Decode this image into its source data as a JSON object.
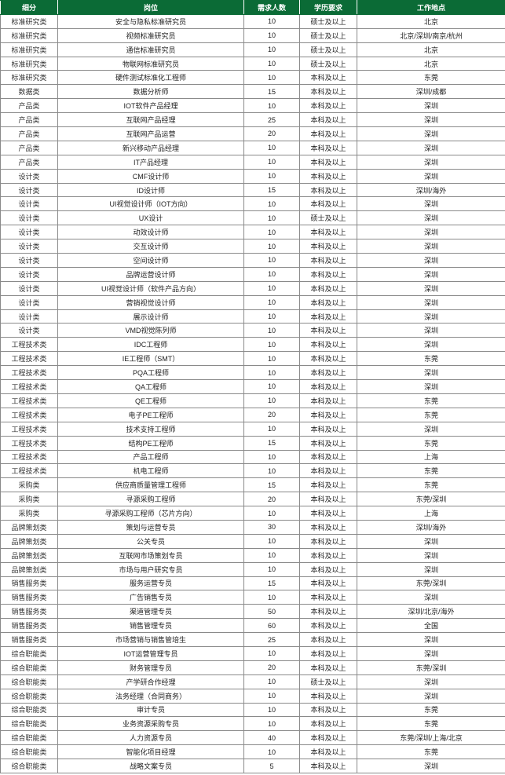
{
  "header_color": "#0b6b36",
  "headers": [
    "细分",
    "岗位",
    "需求人数",
    "学历要求",
    "工作地点"
  ],
  "rows": [
    [
      "标准研究类",
      "安全与隐私标准研究员",
      "10",
      "硕士及以上",
      "北京"
    ],
    [
      "标准研究类",
      "视频标准研究员",
      "10",
      "硕士及以上",
      "北京/深圳/南京/杭州"
    ],
    [
      "标准研究类",
      "通信标准研究员",
      "10",
      "硕士及以上",
      "北京"
    ],
    [
      "标准研究类",
      "物联网标准研究员",
      "10",
      "硕士及以上",
      "北京"
    ],
    [
      "标准研究类",
      "硬件测试标准化工程师",
      "10",
      "本科及以上",
      "东莞"
    ],
    [
      "数据类",
      "数据分析师",
      "15",
      "本科及以上",
      "深圳/成都"
    ],
    [
      "产品类",
      "IOT软件产品经理",
      "10",
      "本科及以上",
      "深圳"
    ],
    [
      "产品类",
      "互联网产品经理",
      "25",
      "本科及以上",
      "深圳"
    ],
    [
      "产品类",
      "互联网产品运营",
      "20",
      "本科及以上",
      "深圳"
    ],
    [
      "产品类",
      "新兴移动产品经理",
      "10",
      "本科及以上",
      "深圳"
    ],
    [
      "产品类",
      "IT产品经理",
      "10",
      "本科及以上",
      "深圳"
    ],
    [
      "设计类",
      "CMF设计师",
      "10",
      "本科及以上",
      "深圳"
    ],
    [
      "设计类",
      "ID设计师",
      "15",
      "本科及以上",
      "深圳/海外"
    ],
    [
      "设计类",
      "UI视觉设计师（IOT方向）",
      "10",
      "本科及以上",
      "深圳"
    ],
    [
      "设计类",
      "UX设计",
      "10",
      "硕士及以上",
      "深圳"
    ],
    [
      "设计类",
      "动效设计师",
      "10",
      "本科及以上",
      "深圳"
    ],
    [
      "设计类",
      "交互设计师",
      "10",
      "本科及以上",
      "深圳"
    ],
    [
      "设计类",
      "空间设计师",
      "10",
      "本科及以上",
      "深圳"
    ],
    [
      "设计类",
      "品牌运营设计师",
      "10",
      "本科及以上",
      "深圳"
    ],
    [
      "设计类",
      "UI视觉设计师（软件产品方向）",
      "10",
      "本科及以上",
      "深圳"
    ],
    [
      "设计类",
      "营销视觉设计师",
      "10",
      "本科及以上",
      "深圳"
    ],
    [
      "设计类",
      "展示设计师",
      "10",
      "本科及以上",
      "深圳"
    ],
    [
      "设计类",
      "VMD视觉陈列师",
      "10",
      "本科及以上",
      "深圳"
    ],
    [
      "工程技术类",
      "IDC工程师",
      "10",
      "本科及以上",
      "深圳"
    ],
    [
      "工程技术类",
      "IE工程师（SMT）",
      "10",
      "本科及以上",
      "东莞"
    ],
    [
      "工程技术类",
      "PQA工程师",
      "10",
      "本科及以上",
      "深圳"
    ],
    [
      "工程技术类",
      "QA工程师",
      "10",
      "本科及以上",
      "深圳"
    ],
    [
      "工程技术类",
      "QE工程师",
      "10",
      "本科及以上",
      "东莞"
    ],
    [
      "工程技术类",
      "电子PE工程师",
      "20",
      "本科及以上",
      "东莞"
    ],
    [
      "工程技术类",
      "技术支持工程师",
      "10",
      "本科及以上",
      "深圳"
    ],
    [
      "工程技术类",
      "结构PE工程师",
      "15",
      "本科及以上",
      "东莞"
    ],
    [
      "工程技术类",
      "产品工程师",
      "10",
      "本科及以上",
      "上海"
    ],
    [
      "工程技术类",
      "机电工程师",
      "10",
      "本科及以上",
      "东莞"
    ],
    [
      "采购类",
      "供应商质量管理工程师",
      "15",
      "本科及以上",
      "东莞"
    ],
    [
      "采购类",
      "寻源采购工程师",
      "20",
      "本科及以上",
      "东莞/深圳"
    ],
    [
      "采购类",
      "寻源采购工程师（芯片方向）",
      "10",
      "本科及以上",
      "上海"
    ],
    [
      "品牌策划类",
      "策划与运营专员",
      "30",
      "本科及以上",
      "深圳/海外"
    ],
    [
      "品牌策划类",
      "公关专员",
      "10",
      "本科及以上",
      "深圳"
    ],
    [
      "品牌策划类",
      "互联网市场策划专员",
      "10",
      "本科及以上",
      "深圳"
    ],
    [
      "品牌策划类",
      "市场与用户研究专员",
      "10",
      "本科及以上",
      "深圳"
    ],
    [
      "销售服务类",
      "服务运营专员",
      "15",
      "本科及以上",
      "东莞/深圳"
    ],
    [
      "销售服务类",
      "广告销售专员",
      "10",
      "本科及以上",
      "深圳"
    ],
    [
      "销售服务类",
      "渠道管理专员",
      "50",
      "本科及以上",
      "深圳/北京/海外"
    ],
    [
      "销售服务类",
      "销售管理专员",
      "60",
      "本科及以上",
      "全国"
    ],
    [
      "销售服务类",
      "市场营销与销售管培生",
      "25",
      "本科及以上",
      "深圳"
    ],
    [
      "综合职能类",
      "IOT运营管理专员",
      "10",
      "本科及以上",
      "深圳"
    ],
    [
      "综合职能类",
      "财务管理专员",
      "20",
      "本科及以上",
      "东莞/深圳"
    ],
    [
      "综合职能类",
      "产学研合作经理",
      "10",
      "硕士及以上",
      "深圳"
    ],
    [
      "综合职能类",
      "法务经理（合同商务）",
      "10",
      "本科及以上",
      "深圳"
    ],
    [
      "综合职能类",
      "审计专员",
      "10",
      "本科及以上",
      "东莞"
    ],
    [
      "综合职能类",
      "业务资源采购专员",
      "10",
      "本科及以上",
      "东莞"
    ],
    [
      "综合职能类",
      "人力资源专员",
      "40",
      "本科及以上",
      "东莞/深圳/上海/北京"
    ],
    [
      "综合职能类",
      "智能化项目经理",
      "10",
      "本科及以上",
      "东莞"
    ],
    [
      "综合职能类",
      "战略文案专员",
      "5",
      "本科及以上",
      "深圳"
    ]
  ]
}
